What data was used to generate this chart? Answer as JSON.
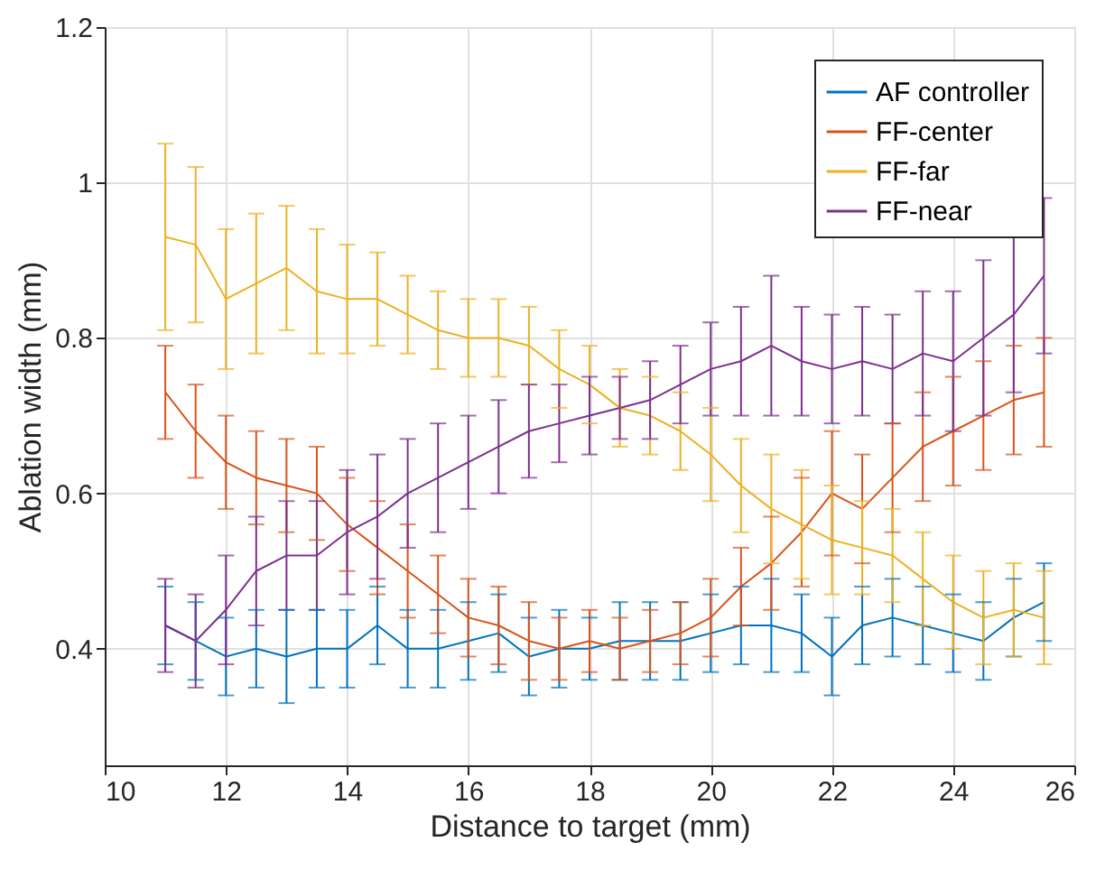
{
  "chart_data": {
    "type": "line",
    "xlabel": "Distance to target (mm)",
    "ylabel": "Ablation width (mm)",
    "x": [
      11,
      11.5,
      12,
      12.5,
      13,
      13.5,
      14,
      14.5,
      15,
      15.5,
      16,
      16.5,
      17,
      17.5,
      18,
      18.5,
      19,
      19.5,
      20,
      20.5,
      21,
      21.5,
      22,
      22.5,
      23,
      23.5,
      24,
      24.5,
      25,
      25.5
    ],
    "series": [
      {
        "name": "AF controller",
        "color": "#0072bd",
        "values": [
          0.43,
          0.41,
          0.39,
          0.4,
          0.39,
          0.4,
          0.4,
          0.43,
          0.4,
          0.4,
          0.41,
          0.42,
          0.39,
          0.4,
          0.4,
          0.41,
          0.41,
          0.41,
          0.42,
          0.43,
          0.43,
          0.42,
          0.39,
          0.43,
          0.44,
          0.43,
          0.42,
          0.41,
          0.44,
          0.46
        ],
        "errors": [
          0.05,
          0.05,
          0.05,
          0.05,
          0.06,
          0.05,
          0.05,
          0.05,
          0.05,
          0.05,
          0.05,
          0.05,
          0.05,
          0.05,
          0.04,
          0.05,
          0.05,
          0.05,
          0.05,
          0.05,
          0.06,
          0.05,
          0.05,
          0.05,
          0.05,
          0.05,
          0.05,
          0.05,
          0.05,
          0.05
        ]
      },
      {
        "name": "FF-center",
        "color": "#d95319",
        "values": [
          0.73,
          0.68,
          0.64,
          0.62,
          0.61,
          0.6,
          0.56,
          0.53,
          0.5,
          0.47,
          0.44,
          0.43,
          0.41,
          0.4,
          0.41,
          0.4,
          0.41,
          0.42,
          0.44,
          0.48,
          0.51,
          0.55,
          0.6,
          0.58,
          0.62,
          0.66,
          0.68,
          0.7,
          0.72,
          0.73
        ],
        "errors": [
          0.06,
          0.06,
          0.06,
          0.06,
          0.06,
          0.06,
          0.06,
          0.06,
          0.06,
          0.05,
          0.05,
          0.05,
          0.05,
          0.04,
          0.04,
          0.04,
          0.04,
          0.04,
          0.05,
          0.05,
          0.06,
          0.07,
          0.08,
          0.07,
          0.07,
          0.07,
          0.07,
          0.07,
          0.07,
          0.07
        ]
      },
      {
        "name": "FF-far",
        "color": "#edb120",
        "values": [
          0.93,
          0.92,
          0.85,
          0.87,
          0.89,
          0.86,
          0.85,
          0.85,
          0.83,
          0.81,
          0.8,
          0.8,
          0.79,
          0.76,
          0.74,
          0.71,
          0.7,
          0.68,
          0.65,
          0.61,
          0.58,
          0.56,
          0.54,
          0.53,
          0.52,
          0.49,
          0.46,
          0.44,
          0.45,
          0.44
        ],
        "errors": [
          0.12,
          0.1,
          0.09,
          0.09,
          0.08,
          0.08,
          0.07,
          0.06,
          0.05,
          0.05,
          0.05,
          0.05,
          0.05,
          0.05,
          0.05,
          0.05,
          0.05,
          0.05,
          0.06,
          0.06,
          0.07,
          0.07,
          0.07,
          0.06,
          0.06,
          0.06,
          0.06,
          0.06,
          0.06,
          0.06
        ]
      },
      {
        "name": "FF-near",
        "color": "#7e2f8e",
        "values": [
          0.43,
          0.41,
          0.45,
          0.5,
          0.52,
          0.52,
          0.55,
          0.57,
          0.6,
          0.62,
          0.64,
          0.66,
          0.68,
          0.69,
          0.7,
          0.71,
          0.72,
          0.74,
          0.76,
          0.77,
          0.79,
          0.77,
          0.76,
          0.77,
          0.76,
          0.78,
          0.77,
          0.8,
          0.83,
          0.88
        ],
        "errors": [
          [
            0.37,
            0.49
          ],
          0.06,
          0.07,
          0.07,
          0.07,
          0.07,
          0.08,
          0.08,
          0.07,
          0.07,
          0.06,
          0.06,
          0.06,
          0.05,
          0.05,
          0.04,
          0.05,
          0.05,
          0.06,
          0.07,
          0.09,
          0.07,
          0.07,
          0.07,
          0.07,
          0.08,
          0.09,
          0.1,
          0.1,
          0.1
        ]
      }
    ],
    "xlim": [
      10,
      26
    ],
    "xticks": [
      10,
      12,
      14,
      16,
      18,
      20,
      22,
      24,
      26
    ],
    "ylim": [
      0.25,
      1.2
    ],
    "yticks": [
      0.4,
      0.6,
      0.8,
      {
        "value": 1,
        "label": "1"
      },
      1.2
    ],
    "grid": true,
    "legend": "top right"
  }
}
